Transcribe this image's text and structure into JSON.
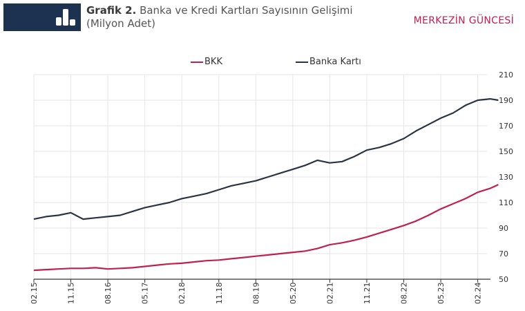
{
  "header": {
    "title_bold": "Grafik 2.",
    "title_rest": " Banka ve Kredi Kartları Sayısının Gelişimi",
    "subtitle": "(Milyon Adet)",
    "brand": "MERKEZİN GÜNCESİ",
    "badge_icon": "bar-chart-icon",
    "badge_color": "#1d3250",
    "brand_color": "#c0204d"
  },
  "legend": [
    {
      "label": "BKK",
      "color": "#c0204d"
    },
    {
      "label": "Banka Kartı",
      "color": "#2b3340"
    }
  ],
  "chart_data": {
    "type": "line",
    "title": "Grafik 2. Banka ve Kredi Kartları Sayısının Gelişimi (Milyon Adet)",
    "xlabel": "",
    "ylabel": "",
    "ylim": [
      50,
      210
    ],
    "yticks": [
      50,
      70,
      90,
      110,
      130,
      150,
      170,
      190,
      210
    ],
    "y_axis_position": "right",
    "grid": true,
    "legend_position": "top",
    "x_tick_labels": [
      "02.15",
      "11.15",
      "08.16",
      "05.17",
      "02.18",
      "11.18",
      "08.19",
      "05.20",
      "02.21",
      "11.21",
      "08.22",
      "05.23",
      "02.24"
    ],
    "x": [
      "02.15",
      "05.15",
      "08.15",
      "11.15",
      "02.16",
      "05.16",
      "08.16",
      "11.16",
      "02.17",
      "05.17",
      "08.17",
      "11.17",
      "02.18",
      "05.18",
      "08.18",
      "11.18",
      "02.19",
      "05.19",
      "08.19",
      "11.19",
      "02.20",
      "05.20",
      "08.20",
      "11.20",
      "02.21",
      "05.21",
      "08.21",
      "11.21",
      "02.22",
      "05.22",
      "08.22",
      "11.22",
      "02.23",
      "05.23",
      "08.23",
      "11.23",
      "02.24",
      "05.24",
      "07.24"
    ],
    "series": [
      {
        "name": "BKK",
        "color": "#c0204d",
        "values": [
          57,
          57.5,
          58,
          58.5,
          58.5,
          59,
          58,
          58.5,
          59,
          60,
          61,
          62,
          62.5,
          63.5,
          64.5,
          65,
          66,
          67,
          68,
          69,
          70,
          71,
          72,
          74,
          77,
          78.5,
          80.5,
          83,
          86,
          89,
          92,
          95.5,
          100,
          105,
          109,
          113,
          118,
          121,
          124
        ]
      },
      {
        "name": "Banka Kartı",
        "color": "#2b3340",
        "values": [
          97,
          99,
          100,
          102,
          97,
          98,
          99,
          100,
          103,
          106,
          108,
          110,
          113,
          115,
          117,
          120,
          123,
          125,
          127,
          130,
          133,
          136,
          139,
          143,
          141,
          142,
          146,
          151,
          153,
          156,
          160,
          166,
          171,
          176,
          180,
          186,
          190,
          191,
          190
        ]
      }
    ]
  }
}
